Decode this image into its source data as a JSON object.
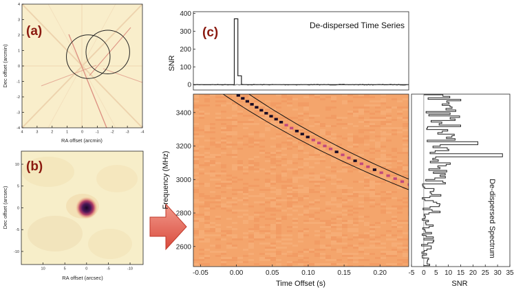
{
  "chart_data": [
    {
      "type": "heatmap",
      "panel_label": "(a)",
      "xlabel": "RA offset (arcmin)",
      "ylabel": "Dec offset (arcmin)",
      "xlim": [
        4,
        -4
      ],
      "ylim": [
        -4,
        4
      ],
      "xticks": [
        "4",
        "3",
        "2",
        "1",
        "0",
        "-1",
        "-2",
        "-3",
        "-4"
      ],
      "yticks": [
        "4",
        "3",
        "2",
        "1",
        "0",
        "-1",
        "-2",
        "-3",
        "-4"
      ],
      "circles": [
        {
          "ra": -0.4,
          "dec": 0.6,
          "radius": 1.45
        },
        {
          "ra": -1.7,
          "dec": 0.9,
          "radius": 1.45
        }
      ],
      "colors": {
        "background": "#f9eecb",
        "streak": "#d98377",
        "circle": "#222222"
      }
    },
    {
      "type": "heatmap",
      "panel_label": "(b)",
      "xlabel": "RA offset (arcsec)",
      "ylabel": "Dec offset (arcsec)",
      "xlim": [
        15,
        -13
      ],
      "ylim": [
        -13,
        13
      ],
      "xticks": [
        "10",
        "5",
        "0",
        "-5",
        "-10"
      ],
      "yticks": [
        "10",
        "5",
        "0",
        "-5",
        "-10"
      ],
      "source": {
        "ra": 0,
        "dec": 0
      },
      "colors": {
        "background": "#f7eec9",
        "peak": "#1e0a2e",
        "ring": "#b03a66"
      }
    },
    {
      "type": "line",
      "panel_label": "(c)",
      "title": "De-dispersed Time Series",
      "ylabel": "SNR",
      "xlim": [
        -0.06,
        0.24
      ],
      "ylim": [
        -30,
        410
      ],
      "yticks": [
        "0",
        "100",
        "200",
        "300",
        "400"
      ],
      "x": [
        -0.06,
        -0.003,
        -0.003,
        0.002,
        0.002,
        0.007,
        0.007,
        0.24
      ],
      "y": [
        0,
        0,
        370,
        370,
        50,
        50,
        0,
        0
      ]
    },
    {
      "type": "heatmap",
      "xlabel": "Time Offset (s)",
      "ylabel": "Frequency (MHz)",
      "xlim": [
        -0.06,
        0.24
      ],
      "ylim": [
        2480,
        3510
      ],
      "xticks": [
        "-0.05",
        "0.00",
        "0.05",
        "0.10",
        "0.15",
        "0.20"
      ],
      "yticks": [
        "2600",
        "2800",
        "3000",
        "3200",
        "3400"
      ],
      "sweep_dm": 1800,
      "ref_frequency_mhz": 3500,
      "colors": {
        "background": "#f4a56c",
        "pulse": "#f07a6c",
        "pulse_strong": "#c24a7c",
        "pulse_peak": "#1a0c25",
        "line": "#111111"
      }
    },
    {
      "type": "line",
      "title": "De-dispersed Spectrum",
      "xlabel": "SNR",
      "xlim": [
        -5,
        35
      ],
      "xticks": [
        "-5",
        "0",
        "5",
        "10",
        "15",
        "20",
        "25",
        "30",
        "35"
      ]
    }
  ]
}
